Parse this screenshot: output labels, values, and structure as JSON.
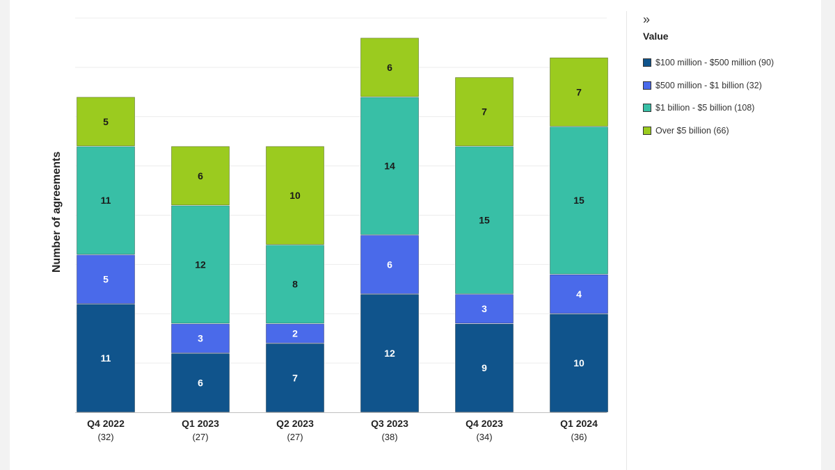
{
  "legend": {
    "toggle_icon": "»",
    "title": "Value",
    "items": [
      {
        "label": "$100 million - $500 million (90)",
        "color": "#10548c"
      },
      {
        "label": "$500 million - $1 billion (32)",
        "color": "#4a6aea"
      },
      {
        "label": "$1 billion - $5 billion (108)",
        "color": "#38bfa6"
      },
      {
        "label": "Over $5 billion (66)",
        "color": "#9bcb1f"
      }
    ]
  },
  "chart_data": {
    "type": "bar",
    "stacked": true,
    "ylabel": "Number of agreements",
    "ylim": [
      0,
      40
    ],
    "grid": true,
    "legend_position": "right",
    "categories": [
      "Q4 2022",
      "Q1 2023",
      "Q2 2023",
      "Q3 2023",
      "Q4 2023",
      "Q1 2024"
    ],
    "category_totals": [
      "(32)",
      "(27)",
      "(27)",
      "(38)",
      "(34)",
      "(36)"
    ],
    "series": [
      {
        "name": "$100 million - $500 million (90)",
        "color": "#10548c",
        "label_color": "#ffffff",
        "values": [
          11,
          6,
          7,
          12,
          9,
          10
        ]
      },
      {
        "name": "$500 million - $1 billion (32)",
        "color": "#4a6aea",
        "label_color": "#ffffff",
        "values": [
          5,
          3,
          2,
          6,
          3,
          4
        ]
      },
      {
        "name": "$1 billion - $5 billion (108)",
        "color": "#38bfa6",
        "label_color": "#1a1a1a",
        "values": [
          11,
          12,
          8,
          14,
          15,
          15
        ]
      },
      {
        "name": "Over $5 billion (66)",
        "color": "#9bcb1f",
        "label_color": "#1a1a1a",
        "values": [
          5,
          6,
          10,
          6,
          7,
          7
        ]
      }
    ]
  }
}
